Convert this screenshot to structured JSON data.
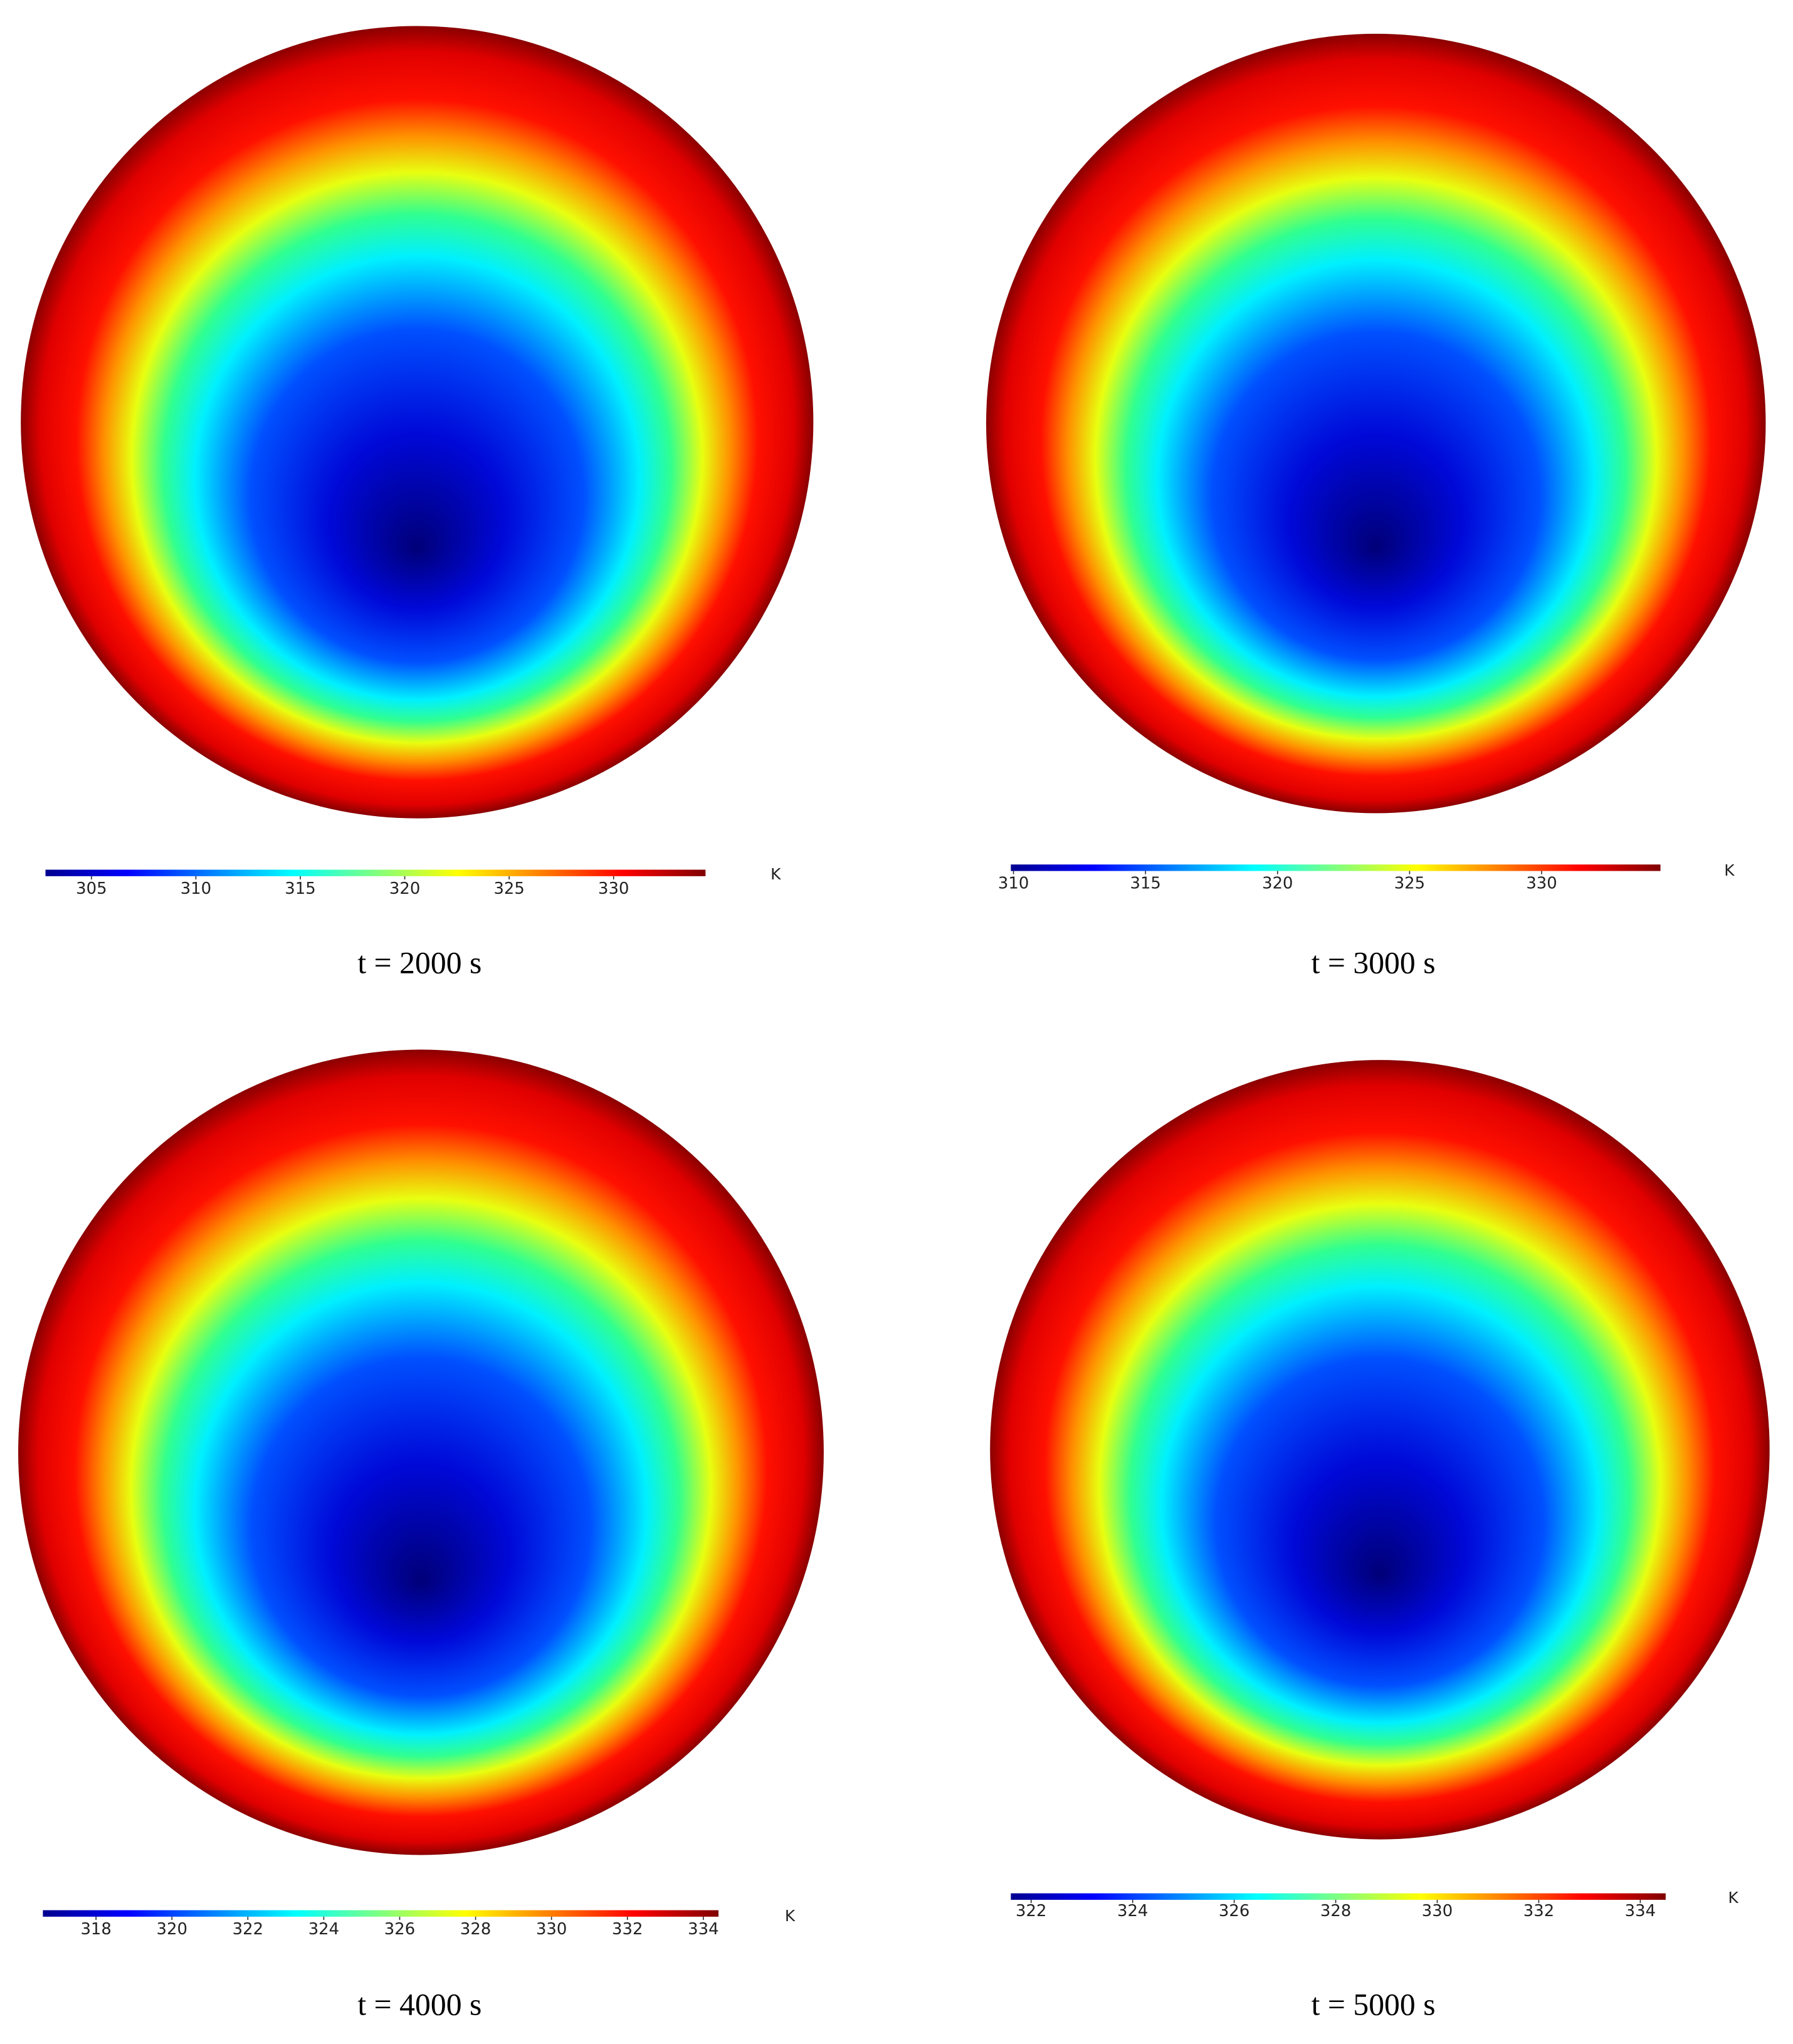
{
  "chart_data": [
    {
      "type": "heatmap",
      "colormap": "jet",
      "clim": [
        302.8,
        334.4
      ],
      "cticks": [
        305,
        310,
        315,
        320,
        325,
        330
      ],
      "unit": "K",
      "caption": "t = 2000 s"
    },
    {
      "type": "heatmap",
      "colormap": "jet",
      "clim": [
        309.9,
        334.5
      ],
      "cticks": [
        310,
        315,
        320,
        325,
        330
      ],
      "unit": "K",
      "caption": "t = 3000 s"
    },
    {
      "type": "heatmap",
      "colormap": "jet",
      "clim": [
        316.6,
        334.4
      ],
      "cticks": [
        318,
        320,
        322,
        324,
        326,
        328,
        330,
        332,
        334
      ],
      "unit": "K",
      "caption": "t = 4000 s"
    },
    {
      "type": "heatmap",
      "colormap": "jet",
      "clim": [
        321.6,
        334.5
      ],
      "cticks": [
        322,
        324,
        326,
        328,
        330,
        332,
        334
      ],
      "unit": "K",
      "caption": "t = 5000 s"
    }
  ]
}
